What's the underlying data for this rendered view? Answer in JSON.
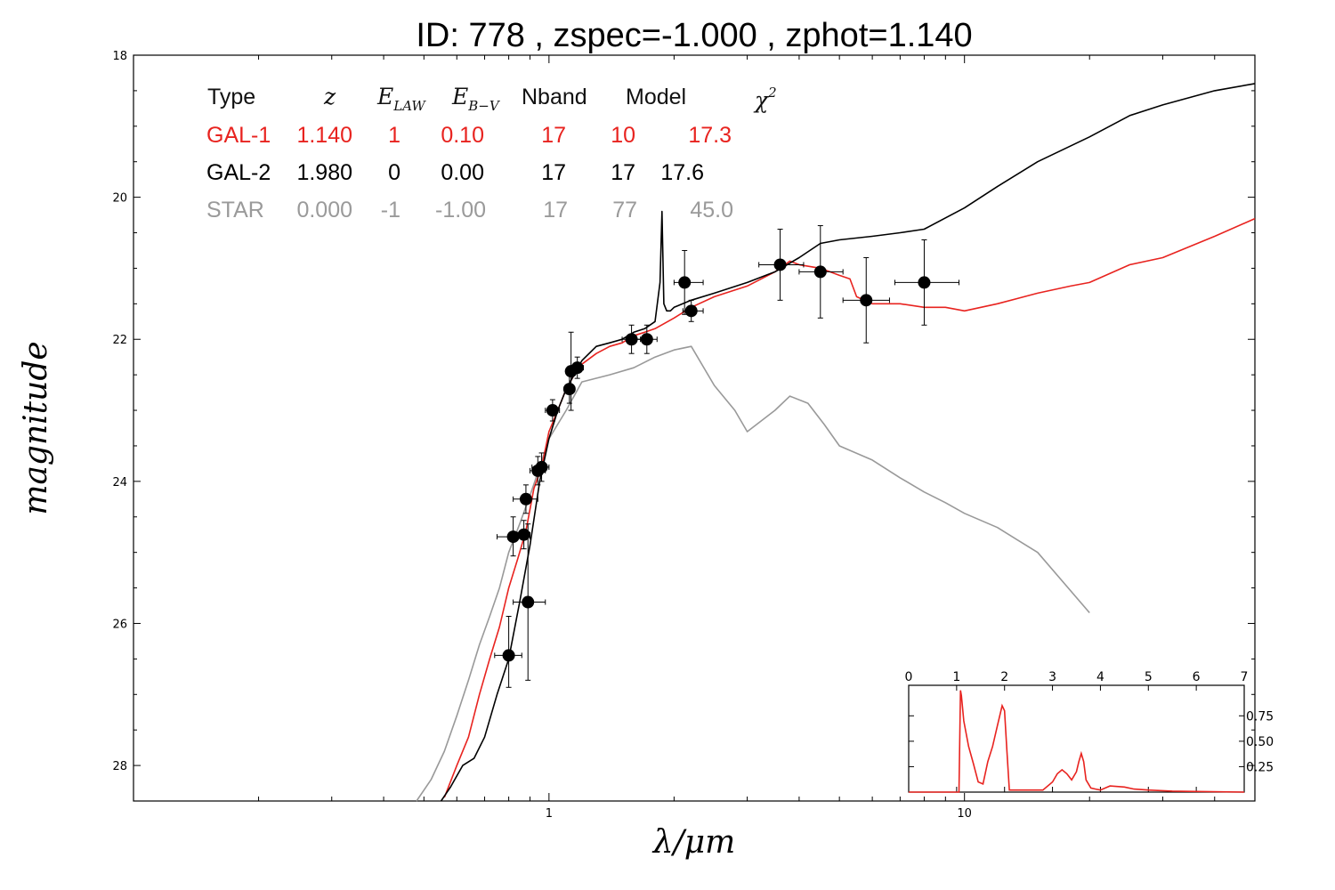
{
  "chart_data": {
    "type": "line",
    "title": "ID:  778   , zspec=-1.000 , zphot=1.140",
    "xlabel": "λ/μm",
    "ylabel": "magnitude",
    "xscale": "log",
    "xlim": [
      0.1,
      50
    ],
    "ylim": [
      28.5,
      18
    ],
    "y_inverted": true,
    "yticks": [
      18,
      20,
      22,
      24,
      26,
      28
    ],
    "xticks": [
      1,
      10
    ],
    "table": {
      "headers": {
        "type": "Type",
        "z": "z",
        "elaw": "E",
        "elaw_sub": "LAW",
        "ebv": "E",
        "ebv_sub": "B−V",
        "nband": "Nband",
        "model": "Model",
        "chi2": "χ",
        "chi2_sup": "2"
      },
      "rows": [
        {
          "type": "GAL-1",
          "z": "1.140",
          "elaw": "1",
          "ebv": "0.10",
          "nband": "17",
          "model": "10",
          "chi2": "17.3",
          "color": "#e8231f"
        },
        {
          "type": "GAL-2",
          "z": "1.980",
          "elaw": "0",
          "ebv": "0.00",
          "nband": "17",
          "model": "17",
          "chi2": "17.6",
          "color": "#000000"
        },
        {
          "type": "STAR",
          "z": "0.000",
          "elaw": "-1",
          "ebv": "-1.00",
          "nband": "17",
          "model": "77",
          "chi2": "45.0",
          "color": "#9a9a9a"
        }
      ]
    },
    "photometry": [
      {
        "x": 0.8,
        "y": 26.45,
        "xerr": [
          0.74,
          0.86
        ],
        "yerr": [
          25.9,
          26.9
        ]
      },
      {
        "x": 0.82,
        "y": 24.78,
        "xerr": [
          0.75,
          0.9
        ],
        "yerr": [
          24.5,
          25.05
        ]
      },
      {
        "x": 0.87,
        "y": 24.75,
        "xerr": [
          0.84,
          0.9
        ],
        "yerr": [
          24.55,
          24.95
        ]
      },
      {
        "x": 0.88,
        "y": 24.25,
        "xerr": [
          0.82,
          0.94
        ],
        "yerr": [
          24.05,
          24.45
        ]
      },
      {
        "x": 0.89,
        "y": 25.7,
        "xerr": [
          0.82,
          0.98
        ],
        "yerr": [
          24.6,
          26.8
        ]
      },
      {
        "x": 0.94,
        "y": 23.85,
        "xerr": [
          0.9,
          0.98
        ],
        "yerr": [
          23.65,
          24.05
        ]
      },
      {
        "x": 0.96,
        "y": 23.8,
        "xerr": [
          0.91,
          1.0
        ],
        "yerr": [
          23.6,
          24.0
        ]
      },
      {
        "x": 1.02,
        "y": 23.0,
        "xerr": [
          0.98,
          1.06
        ],
        "yerr": [
          22.85,
          23.15
        ]
      },
      {
        "x": 1.12,
        "y": 22.7,
        "xerr": [
          1.09,
          1.15
        ],
        "yerr": [
          22.5,
          22.9
        ]
      },
      {
        "x": 1.13,
        "y": 22.45,
        "xerr": [
          1.1,
          1.16
        ],
        "yerr": [
          21.9,
          23.0
        ]
      },
      {
        "x": 1.17,
        "y": 22.4,
        "xerr": [
          1.13,
          1.21
        ],
        "yerr": [
          22.25,
          22.55
        ]
      },
      {
        "x": 1.58,
        "y": 22.0,
        "xerr": [
          1.5,
          1.66
        ],
        "yerr": [
          21.8,
          22.2
        ]
      },
      {
        "x": 1.72,
        "y": 22.0,
        "xerr": [
          1.62,
          1.82
        ],
        "yerr": [
          21.8,
          22.2
        ]
      },
      {
        "x": 2.12,
        "y": 21.2,
        "xerr": [
          2.0,
          2.35
        ],
        "yerr": [
          20.75,
          21.65
        ]
      },
      {
        "x": 2.2,
        "y": 21.6,
        "xerr": [
          2.1,
          2.35
        ],
        "yerr": [
          21.45,
          21.75
        ]
      },
      {
        "x": 3.6,
        "y": 20.95,
        "xerr": [
          3.2,
          4.1
        ],
        "yerr": [
          20.45,
          21.45
        ]
      },
      {
        "x": 4.5,
        "y": 21.05,
        "xerr": [
          4.0,
          5.1
        ],
        "yerr": [
          20.4,
          21.7
        ]
      },
      {
        "x": 5.8,
        "y": 21.45,
        "xerr": [
          5.1,
          6.6
        ],
        "yerr": [
          20.85,
          22.05
        ]
      },
      {
        "x": 8.0,
        "y": 21.2,
        "xerr": [
          6.8,
          9.7
        ],
        "yerr": [
          20.6,
          21.8
        ]
      }
    ],
    "series": [
      {
        "name": "GAL-1",
        "color": "#e8231f",
        "x": [
          0.56,
          0.6,
          0.64,
          0.68,
          0.72,
          0.76,
          0.8,
          0.84,
          0.88,
          0.92,
          0.96,
          1.0,
          1.05,
          1.1,
          1.15,
          1.2,
          1.3,
          1.4,
          1.5,
          1.6,
          1.7,
          1.8,
          2.0,
          2.2,
          2.5,
          3.0,
          3.5,
          3.8,
          4.0,
          4.5,
          5.0,
          5.3,
          5.5,
          6.0,
          7.0,
          8.0,
          9.0,
          10.0,
          12.0,
          15.0,
          18.0,
          20.0,
          25.0,
          30.0,
          40.0,
          50.0
        ],
        "y": [
          28.45,
          28.0,
          27.6,
          27.0,
          26.5,
          26.05,
          25.5,
          25.1,
          24.7,
          24.1,
          23.8,
          23.3,
          23.0,
          22.7,
          22.5,
          22.35,
          22.2,
          22.1,
          22.05,
          21.95,
          21.9,
          21.85,
          21.7,
          21.55,
          21.4,
          21.25,
          21.05,
          20.9,
          20.95,
          21.0,
          21.1,
          21.15,
          21.4,
          21.5,
          21.5,
          21.55,
          21.55,
          21.6,
          21.5,
          21.35,
          21.25,
          21.2,
          20.95,
          20.85,
          20.55,
          20.3
        ]
      },
      {
        "name": "GAL-2",
        "color": "#000000",
        "x": [
          0.55,
          0.58,
          0.62,
          0.66,
          0.7,
          0.75,
          0.8,
          0.85,
          0.9,
          0.95,
          1.0,
          1.05,
          1.1,
          1.2,
          1.3,
          1.4,
          1.5,
          1.6,
          1.7,
          1.8,
          1.85,
          1.87,
          1.89,
          1.92,
          1.96,
          2.0,
          2.2,
          2.5,
          3.0,
          3.5,
          4.0,
          4.5,
          5.0,
          6.0,
          7.0,
          8.0,
          10.0,
          12.0,
          15.0,
          20.0,
          25.0,
          30.0,
          40.0,
          50.0
        ],
        "y": [
          28.5,
          28.3,
          28.0,
          27.9,
          27.6,
          27.0,
          26.5,
          25.7,
          24.9,
          24.0,
          23.4,
          23.0,
          22.7,
          22.3,
          22.1,
          22.05,
          22.0,
          21.9,
          21.85,
          21.75,
          21.2,
          20.2,
          21.5,
          21.6,
          21.6,
          21.55,
          21.45,
          21.35,
          21.2,
          21.05,
          20.85,
          20.65,
          20.6,
          20.55,
          20.5,
          20.45,
          20.15,
          19.85,
          19.5,
          19.15,
          18.85,
          18.7,
          18.5,
          18.4
        ]
      },
      {
        "name": "STAR",
        "color": "#999999",
        "x": [
          0.48,
          0.52,
          0.56,
          0.6,
          0.64,
          0.68,
          0.72,
          0.76,
          0.8,
          0.85,
          0.9,
          0.95,
          1.0,
          1.1,
          1.2,
          1.4,
          1.6,
          1.8,
          2.0,
          2.2,
          2.5,
          2.8,
          3.0,
          3.5,
          3.8,
          4.2,
          4.6,
          5.0,
          6.0,
          7.0,
          8.0,
          9.0,
          10.0,
          12.0,
          15.0,
          20.0
        ],
        "y": [
          28.5,
          28.2,
          27.8,
          27.3,
          26.8,
          26.3,
          25.9,
          25.5,
          25.0,
          24.6,
          24.2,
          23.8,
          23.4,
          23.0,
          22.6,
          22.5,
          22.4,
          22.25,
          22.15,
          22.1,
          22.65,
          23.0,
          23.3,
          23.0,
          22.8,
          22.9,
          23.2,
          23.5,
          23.7,
          23.95,
          24.15,
          24.3,
          24.45,
          24.65,
          25.0,
          25.85
        ]
      }
    ],
    "inset": {
      "title": "",
      "xlim": [
        0,
        7
      ],
      "ylim": [
        0,
        1.05
      ],
      "xticks": [
        0,
        1,
        2,
        3,
        4,
        5,
        6,
        7
      ],
      "yticks": [
        0.25,
        0.5,
        0.75
      ],
      "ytick_labels": [
        "0.25",
        "0.50",
        "0.75"
      ],
      "color": "#e8231f",
      "x": [
        0,
        1.05,
        1.08,
        1.1,
        1.15,
        1.25,
        1.35,
        1.45,
        1.55,
        1.65,
        1.75,
        1.85,
        1.95,
        2.0,
        2.05,
        2.1,
        2.5,
        2.8,
        3.0,
        3.1,
        3.2,
        3.3,
        3.4,
        3.5,
        3.55,
        3.6,
        3.65,
        3.7,
        3.8,
        3.9,
        4.0,
        4.2,
        4.5,
        4.7,
        5.0,
        5.5,
        7.0
      ],
      "y": [
        0,
        0,
        1.0,
        0.95,
        0.7,
        0.45,
        0.28,
        0.1,
        0.08,
        0.3,
        0.45,
        0.65,
        0.85,
        0.8,
        0.4,
        0.02,
        0.02,
        0.02,
        0.1,
        0.18,
        0.22,
        0.18,
        0.12,
        0.2,
        0.3,
        0.38,
        0.3,
        0.12,
        0.04,
        0.03,
        0.02,
        0.06,
        0.05,
        0.03,
        0.02,
        0.01,
        0.0
      ]
    }
  }
}
